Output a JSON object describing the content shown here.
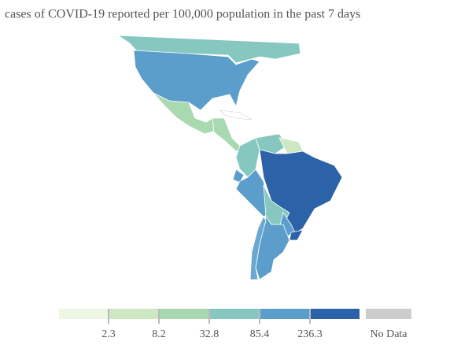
{
  "title": "cases of COVID-19 reported per 100,000 population in the past 7 days",
  "legend": {
    "colors": [
      "#eef7e4",
      "#cde8c2",
      "#a9d9b1",
      "#86c7bf",
      "#5b9ecb",
      "#2b62a8"
    ],
    "breaks": [
      2.3,
      8.2,
      32.8,
      85.4,
      236.3
    ],
    "no_data_label": "No Data",
    "no_data_color": "#cccccc"
  }
}
